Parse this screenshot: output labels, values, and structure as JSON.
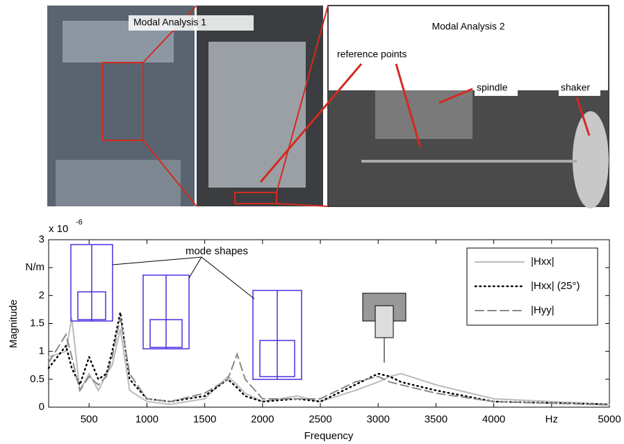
{
  "annotations": {
    "modal_analysis_1": "Modal Analysis 1",
    "modal_analysis_2": "Modal Analysis 2",
    "reference_points": "reference points",
    "spindle": "spindle",
    "shaker": "shaker",
    "mode_shapes": "mode shapes"
  },
  "chart_data": {
    "type": "line",
    "x_label": "Frequency",
    "y_label": "Magnitude",
    "multiplier": "x 10",
    "multiplier_exponent": "-6",
    "x": [
      150,
      300,
      350,
      420,
      500,
      580,
      650,
      700,
      770,
      850,
      1000,
      1200,
      1500,
      1700,
      1780,
      1850,
      2000,
      2300,
      2500,
      2800,
      3000,
      3100,
      3200,
      3500,
      4000,
      5000
    ],
    "series": [
      {
        "name": "|Hxx|",
        "color": "#bbbbbb",
        "style": "solid",
        "values": [
          0.9,
          1.0,
          1.6,
          0.3,
          0.6,
          0.3,
          0.6,
          0.75,
          1.4,
          0.3,
          0.1,
          0.05,
          0.15,
          0.55,
          0.4,
          0.25,
          0.1,
          0.2,
          0.1,
          0.3,
          0.45,
          0.55,
          0.6,
          0.4,
          0.15,
          0.05
        ]
      },
      {
        "name": "|Hxx| (25°)",
        "color": "#000000",
        "style": "dotted",
        "values": [
          0.7,
          1.1,
          0.7,
          0.4,
          0.9,
          0.5,
          0.6,
          1.0,
          1.7,
          0.5,
          0.15,
          0.1,
          0.2,
          0.5,
          0.35,
          0.2,
          0.1,
          0.15,
          0.1,
          0.4,
          0.6,
          0.55,
          0.45,
          0.3,
          0.1,
          0.05
        ]
      },
      {
        "name": "|Hyy|",
        "color": "#888888",
        "style": "dashed",
        "values": [
          0.8,
          1.3,
          0.9,
          0.3,
          0.55,
          0.4,
          0.55,
          0.9,
          1.6,
          0.6,
          0.15,
          0.1,
          0.25,
          0.5,
          0.95,
          0.5,
          0.15,
          0.15,
          0.15,
          0.45,
          0.55,
          0.45,
          0.4,
          0.25,
          0.1,
          0.04
        ]
      }
    ],
    "xlim": [
      150,
      5000
    ],
    "xticks": [
      500,
      1000,
      1500,
      2000,
      2500,
      3000,
      3500,
      4000,
      {
        "value": 4500,
        "label": "Hz"
      },
      5000
    ],
    "ylim": [
      0,
      3
    ],
    "yticks": [
      0,
      0.5,
      1,
      1.5,
      2,
      {
        "value": 2.5,
        "label": "N/m"
      },
      3
    ],
    "grid": false,
    "legend": "upper right"
  }
}
